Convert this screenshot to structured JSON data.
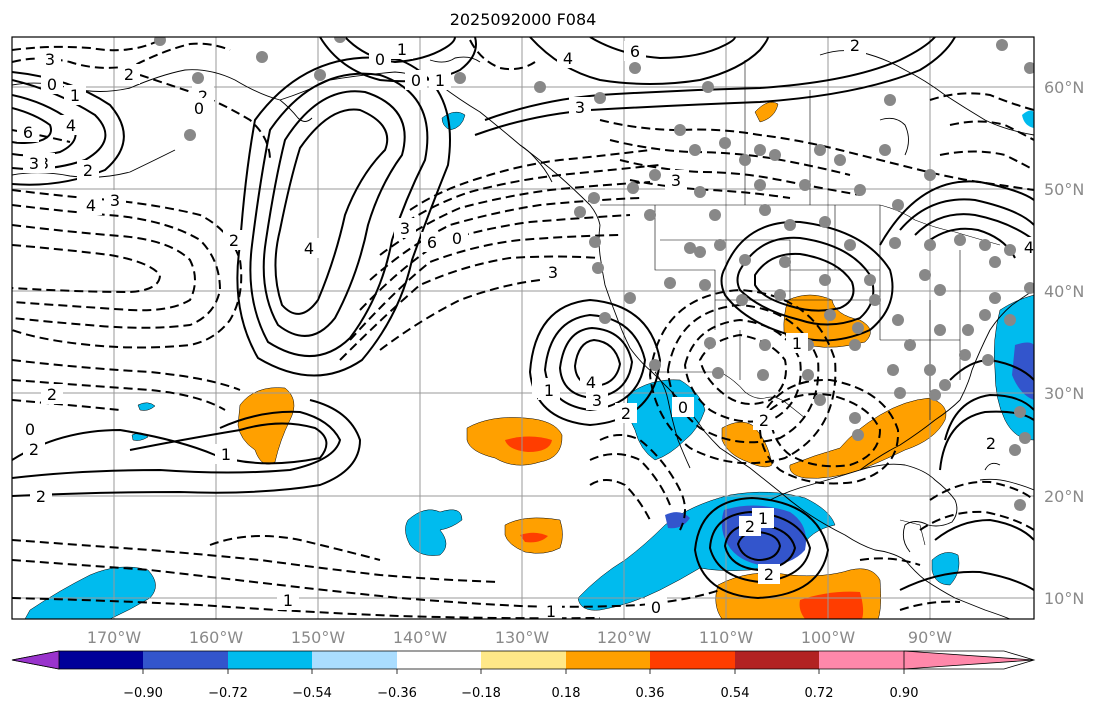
{
  "title": "2025092000 F084",
  "map": {
    "lon_labels": [
      "170°W",
      "160°W",
      "150°W",
      "140°W",
      "130°W",
      "120°W",
      "110°W",
      "100°W",
      "90°W"
    ],
    "lat_labels": [
      "60°N",
      "50°N",
      "40°N",
      "30°N",
      "20°N",
      "10°N"
    ]
  },
  "colorbar": {
    "colors": [
      "#9933cc",
      "#000099",
      "#3355cc",
      "#00bbee",
      "#aaddff",
      "#ffffff",
      "#ffe888",
      "#ffa000",
      "#ff3d00",
      "#b22222",
      "#ff88aa"
    ],
    "tick_labels": [
      "−0.90",
      "−0.72",
      "−0.54",
      "−0.36",
      "−0.18",
      "0.18",
      "0.36",
      "0.54",
      "0.72",
      "0.90"
    ]
  },
  "contour_labels": [
    "3",
    "2",
    "0",
    "1",
    "2",
    "0",
    "6",
    "4",
    "3",
    "2",
    "6",
    "4",
    "3",
    "0",
    "1",
    "2",
    "3",
    "6",
    "4",
    "3",
    "1",
    "2",
    "4",
    "2",
    "3",
    "0",
    "0",
    "3",
    "4",
    "1",
    "3",
    "2",
    "0",
    "4",
    "3",
    "2",
    "1",
    "2",
    "0",
    "2",
    "1",
    "2",
    "1",
    "2",
    "1",
    "2",
    "0",
    "1",
    "1"
  ]
}
